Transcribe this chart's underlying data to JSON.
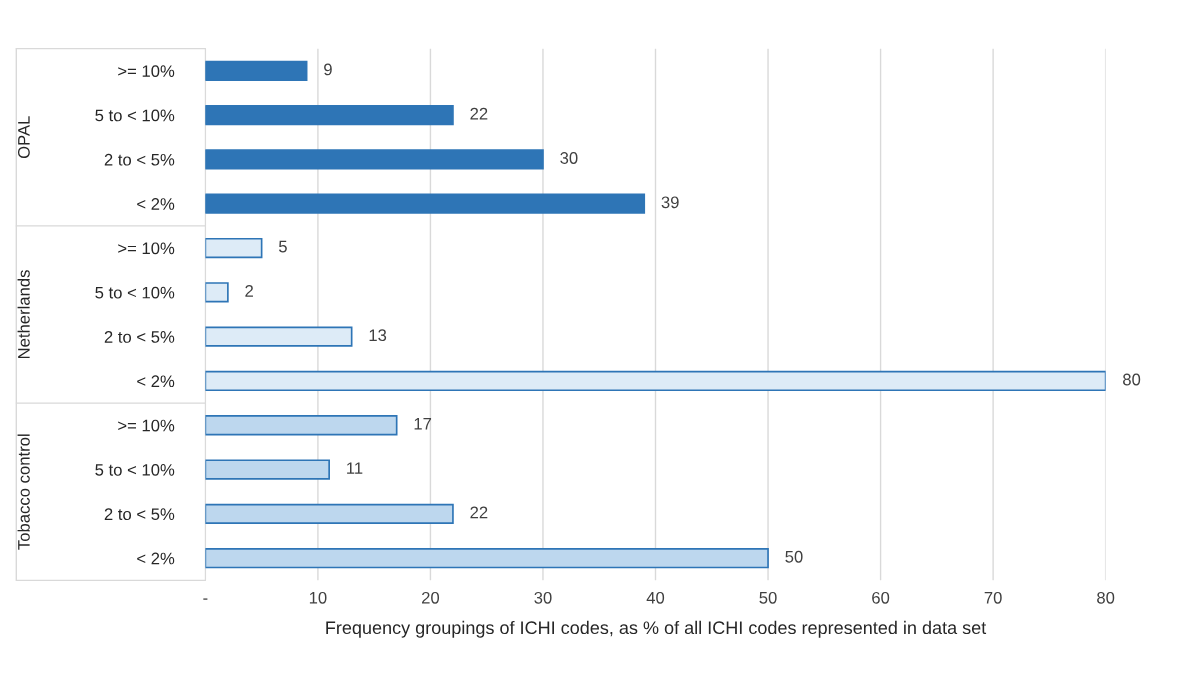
{
  "chart_data": {
    "type": "bar",
    "orientation": "horizontal",
    "xlabel": "Frequency groupings of ICHI codes, as % of all ICHI codes represented in data set",
    "categories": [
      ">= 10%",
      "5 to < 10%",
      "2 to < 5%",
      "< 2%",
      ">= 10%",
      "5 to < 10%",
      "2 to < 5%",
      "< 2%",
      ">= 10%",
      "5 to < 10%",
      "2 to < 5%",
      "< 2%"
    ],
    "values": [
      9,
      22,
      30,
      39,
      5,
      2,
      13,
      80,
      17,
      11,
      22,
      50
    ],
    "colors": [
      "#2e75b6",
      "#2e75b6",
      "#2e75b6",
      "#2e75b6",
      "#ddebf7",
      "#ddebf7",
      "#ddebf7",
      "#ddebf7",
      "#bdd7ee",
      "#bdd7ee",
      "#bdd7ee",
      "#bdd7ee"
    ],
    "annotations": [
      "OPAL",
      "Netherlands",
      "Tobacco control"
    ],
    "xlim": [
      0,
      80
    ],
    "xticks": [
      {
        "value": 0,
        "label": "-"
      },
      10,
      20,
      30,
      40,
      50,
      60,
      70,
      80
    ],
    "grid": "x",
    "data_labels": true,
    "legend": false
  }
}
